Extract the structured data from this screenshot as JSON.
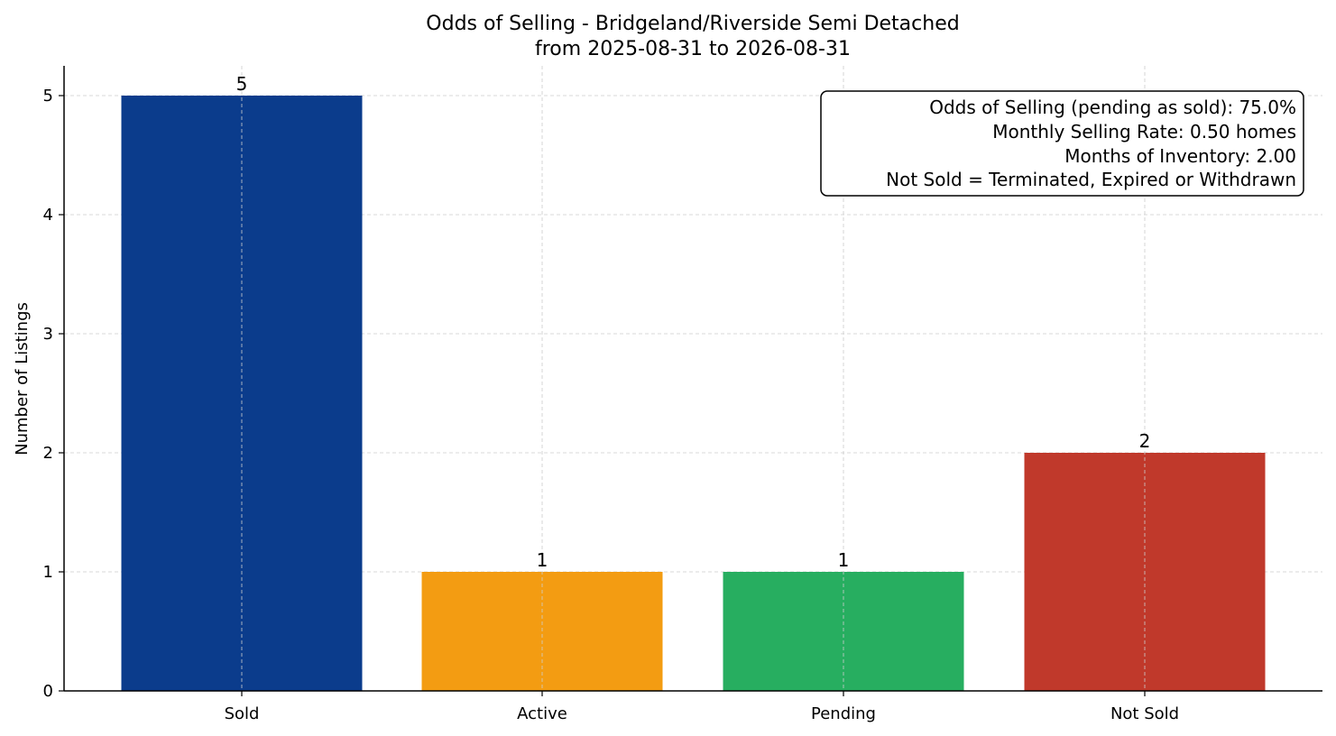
{
  "chart_data": {
    "type": "bar",
    "title": "Odds of Selling - Bridgeland/Riverside Semi Detached",
    "subtitle": "from 2025-08-31 to 2026-08-31",
    "xlabel": "",
    "ylabel": "Number of Listings",
    "categories": [
      "Sold",
      "Active",
      "Pending",
      "Not Sold"
    ],
    "values": [
      5,
      1,
      1,
      2
    ],
    "data_labels": [
      "5",
      "1",
      "1",
      "2"
    ],
    "colors": [
      "#0b3c8c",
      "#f39c12",
      "#27ae60",
      "#c0392b"
    ],
    "ylim": [
      0,
      5.25
    ],
    "yticks": [
      0,
      1,
      2,
      3,
      4,
      5
    ],
    "ytick_labels": [
      "0",
      "1",
      "2",
      "3",
      "4",
      "5"
    ],
    "grid": true,
    "info_box_placement": "top-right",
    "info_box_lines": [
      "Odds of Selling (pending as sold): 75.0%",
      "Monthly Selling Rate: 0.50 homes",
      "Months of Inventory: 2.00",
      "Not Sold = Terminated, Expired or Withdrawn"
    ]
  }
}
